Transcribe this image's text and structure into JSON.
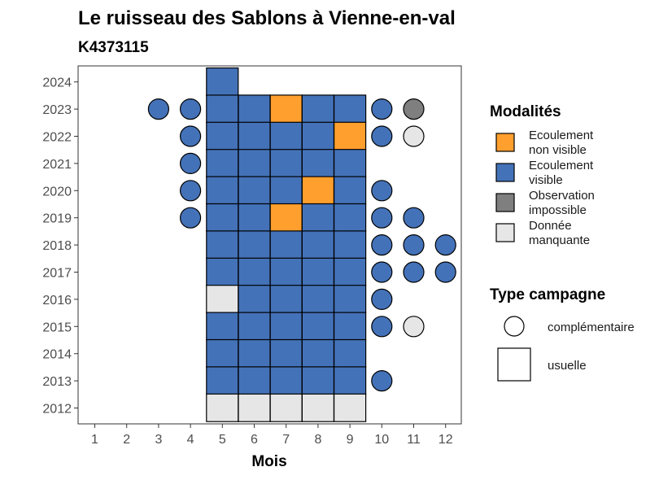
{
  "chart_data": {
    "type": "heatmap",
    "title": "Le ruisseau des Sablons à Vienne-en-val",
    "subtitle": "K4373115",
    "xlabel": "Mois",
    "ylabel": "",
    "x_ticks": [
      1,
      2,
      3,
      4,
      5,
      6,
      7,
      8,
      9,
      10,
      11,
      12
    ],
    "y_ticks": [
      2012,
      2013,
      2014,
      2015,
      2016,
      2017,
      2018,
      2019,
      2020,
      2021,
      2022,
      2023,
      2024
    ],
    "legend_modalites": {
      "title": "Modalités",
      "items": [
        {
          "key": "nv",
          "label_lines": [
            "Ecoulement",
            "non visible"
          ],
          "color": "#ff9f2e"
        },
        {
          "key": "v",
          "label_lines": [
            "Ecoulement",
            "visible"
          ],
          "color": "#4472b8"
        },
        {
          "key": "oi",
          "label_lines": [
            "Observation",
            "impossible"
          ],
          "color": "#7f7f7f"
        },
        {
          "key": "dm",
          "label_lines": [
            "Donnée",
            "manquante"
          ],
          "color": "#e6e6e6"
        }
      ]
    },
    "legend_type": {
      "title": "Type campagne",
      "items": [
        {
          "key": "comp",
          "label": "complémentaire",
          "shape": "circle"
        },
        {
          "key": "usu",
          "label": "usuelle",
          "shape": "square"
        }
      ]
    },
    "usuelle": [
      {
        "year": 2024,
        "month": 5,
        "status": "v"
      },
      {
        "year": 2023,
        "month": 5,
        "status": "v"
      },
      {
        "year": 2023,
        "month": 6,
        "status": "v"
      },
      {
        "year": 2023,
        "month": 7,
        "status": "nv"
      },
      {
        "year": 2023,
        "month": 8,
        "status": "v"
      },
      {
        "year": 2023,
        "month": 9,
        "status": "v"
      },
      {
        "year": 2022,
        "month": 5,
        "status": "v"
      },
      {
        "year": 2022,
        "month": 6,
        "status": "v"
      },
      {
        "year": 2022,
        "month": 7,
        "status": "v"
      },
      {
        "year": 2022,
        "month": 8,
        "status": "v"
      },
      {
        "year": 2022,
        "month": 9,
        "status": "nv"
      },
      {
        "year": 2021,
        "month": 5,
        "status": "v"
      },
      {
        "year": 2021,
        "month": 6,
        "status": "v"
      },
      {
        "year": 2021,
        "month": 7,
        "status": "v"
      },
      {
        "year": 2021,
        "month": 8,
        "status": "v"
      },
      {
        "year": 2021,
        "month": 9,
        "status": "v"
      },
      {
        "year": 2020,
        "month": 5,
        "status": "v"
      },
      {
        "year": 2020,
        "month": 6,
        "status": "v"
      },
      {
        "year": 2020,
        "month": 7,
        "status": "v"
      },
      {
        "year": 2020,
        "month": 8,
        "status": "nv"
      },
      {
        "year": 2020,
        "month": 9,
        "status": "v"
      },
      {
        "year": 2019,
        "month": 5,
        "status": "v"
      },
      {
        "year": 2019,
        "month": 6,
        "status": "v"
      },
      {
        "year": 2019,
        "month": 7,
        "status": "nv"
      },
      {
        "year": 2019,
        "month": 8,
        "status": "v"
      },
      {
        "year": 2019,
        "month": 9,
        "status": "v"
      },
      {
        "year": 2018,
        "month": 5,
        "status": "v"
      },
      {
        "year": 2018,
        "month": 6,
        "status": "v"
      },
      {
        "year": 2018,
        "month": 7,
        "status": "v"
      },
      {
        "year": 2018,
        "month": 8,
        "status": "v"
      },
      {
        "year": 2018,
        "month": 9,
        "status": "v"
      },
      {
        "year": 2017,
        "month": 5,
        "status": "v"
      },
      {
        "year": 2017,
        "month": 6,
        "status": "v"
      },
      {
        "year": 2017,
        "month": 7,
        "status": "v"
      },
      {
        "year": 2017,
        "month": 8,
        "status": "v"
      },
      {
        "year": 2017,
        "month": 9,
        "status": "v"
      },
      {
        "year": 2016,
        "month": 5,
        "status": "dm"
      },
      {
        "year": 2016,
        "month": 6,
        "status": "v"
      },
      {
        "year": 2016,
        "month": 7,
        "status": "v"
      },
      {
        "year": 2016,
        "month": 8,
        "status": "v"
      },
      {
        "year": 2016,
        "month": 9,
        "status": "v"
      },
      {
        "year": 2015,
        "month": 5,
        "status": "v"
      },
      {
        "year": 2015,
        "month": 6,
        "status": "v"
      },
      {
        "year": 2015,
        "month": 7,
        "status": "v"
      },
      {
        "year": 2015,
        "month": 8,
        "status": "v"
      },
      {
        "year": 2015,
        "month": 9,
        "status": "v"
      },
      {
        "year": 2014,
        "month": 5,
        "status": "v"
      },
      {
        "year": 2014,
        "month": 6,
        "status": "v"
      },
      {
        "year": 2014,
        "month": 7,
        "status": "v"
      },
      {
        "year": 2014,
        "month": 8,
        "status": "v"
      },
      {
        "year": 2014,
        "month": 9,
        "status": "v"
      },
      {
        "year": 2013,
        "month": 5,
        "status": "v"
      },
      {
        "year": 2013,
        "month": 6,
        "status": "v"
      },
      {
        "year": 2013,
        "month": 7,
        "status": "v"
      },
      {
        "year": 2013,
        "month": 8,
        "status": "v"
      },
      {
        "year": 2013,
        "month": 9,
        "status": "v"
      },
      {
        "year": 2012,
        "month": 5,
        "status": "dm"
      },
      {
        "year": 2012,
        "month": 6,
        "status": "dm"
      },
      {
        "year": 2012,
        "month": 7,
        "status": "dm"
      },
      {
        "year": 2012,
        "month": 8,
        "status": "dm"
      },
      {
        "year": 2012,
        "month": 9,
        "status": "dm"
      }
    ],
    "complementaire": [
      {
        "year": 2023,
        "month": 3,
        "status": "v"
      },
      {
        "year": 2023,
        "month": 4,
        "status": "v"
      },
      {
        "year": 2023,
        "month": 10,
        "status": "v"
      },
      {
        "year": 2023,
        "month": 11,
        "status": "oi"
      },
      {
        "year": 2022,
        "month": 4,
        "status": "v"
      },
      {
        "year": 2022,
        "month": 10,
        "status": "v"
      },
      {
        "year": 2022,
        "month": 11,
        "status": "dm"
      },
      {
        "year": 2021,
        "month": 4,
        "status": "v"
      },
      {
        "year": 2020,
        "month": 4,
        "status": "v"
      },
      {
        "year": 2020,
        "month": 10,
        "status": "v"
      },
      {
        "year": 2019,
        "month": 4,
        "status": "v"
      },
      {
        "year": 2019,
        "month": 10,
        "status": "v"
      },
      {
        "year": 2019,
        "month": 11,
        "status": "v"
      },
      {
        "year": 2018,
        "month": 10,
        "status": "v"
      },
      {
        "year": 2018,
        "month": 11,
        "status": "v"
      },
      {
        "year": 2018,
        "month": 12,
        "status": "v"
      },
      {
        "year": 2017,
        "month": 10,
        "status": "v"
      },
      {
        "year": 2017,
        "month": 11,
        "status": "v"
      },
      {
        "year": 2017,
        "month": 12,
        "status": "v"
      },
      {
        "year": 2016,
        "month": 10,
        "status": "v"
      },
      {
        "year": 2015,
        "month": 10,
        "status": "v"
      },
      {
        "year": 2015,
        "month": 11,
        "status": "dm"
      },
      {
        "year": 2013,
        "month": 10,
        "status": "v"
      }
    ]
  }
}
